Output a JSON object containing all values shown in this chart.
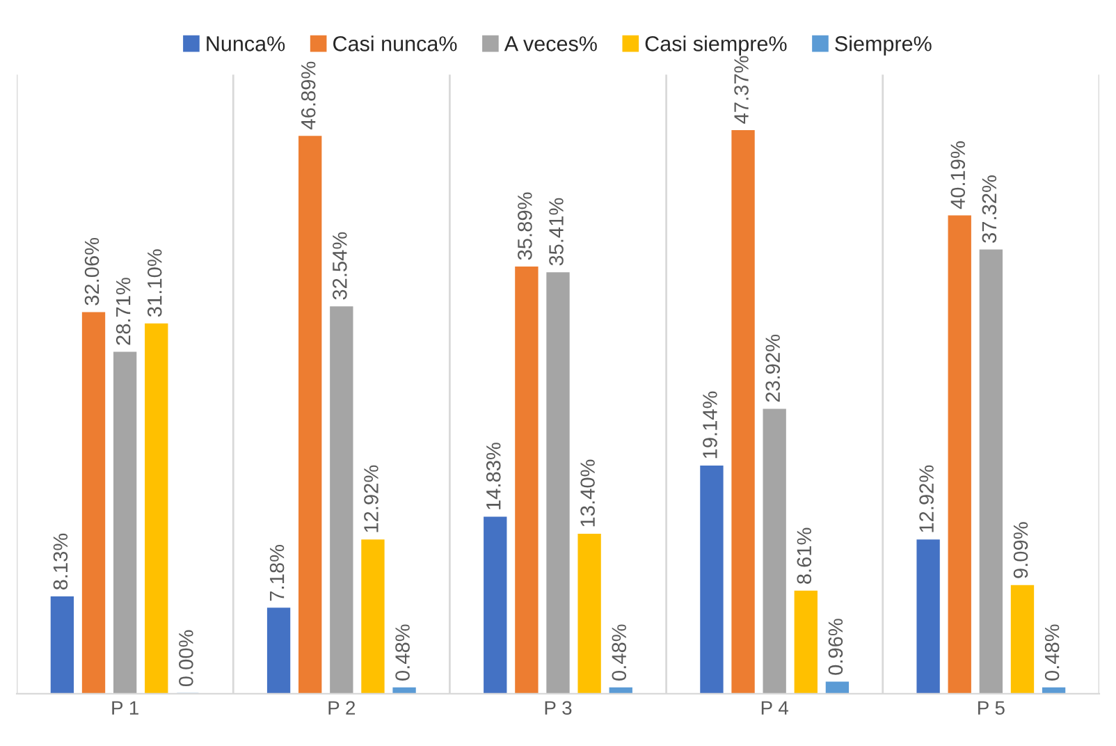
{
  "chart_data": {
    "type": "bar",
    "categories": [
      "P 1",
      "P 2",
      "P 3",
      "P 4",
      "P 5"
    ],
    "series": [
      {
        "name": "Nunca%",
        "color": "#4472c4",
        "values": [
          8.13,
          7.18,
          14.83,
          19.14,
          12.92
        ],
        "value_labels": [
          "8.13%",
          "7.18%",
          "14.83%",
          "19.14%",
          "12.92%"
        ]
      },
      {
        "name": "Casi nunca%",
        "color": "#ed7d31",
        "values": [
          32.06,
          46.89,
          35.89,
          47.37,
          40.19
        ],
        "value_labels": [
          "32.06%",
          "46.89%",
          "35.89%",
          "47.37%",
          "40.19%"
        ]
      },
      {
        "name": "A veces%",
        "color": "#a5a5a5",
        "values": [
          28.71,
          32.54,
          35.41,
          23.92,
          37.32
        ],
        "value_labels": [
          "28.71%",
          "32.54%",
          "35.41%",
          "23.92%",
          "37.32%"
        ]
      },
      {
        "name": "Casi siempre%",
        "color": "#ffc000",
        "values": [
          31.1,
          12.92,
          13.4,
          8.61,
          9.09
        ],
        "value_labels": [
          "31.10%",
          "12.92%",
          "13.40%",
          "8.61%",
          "9.09%"
        ]
      },
      {
        "name": "Siempre%",
        "color": "#5b9bd5",
        "values": [
          0.0,
          0.48,
          0.48,
          0.96,
          0.48
        ],
        "value_labels": [
          "0.00%",
          "0.48%",
          "0.48%",
          "0.96%",
          "0.48%"
        ]
      }
    ],
    "legend": "top",
    "grid": "x"
  }
}
